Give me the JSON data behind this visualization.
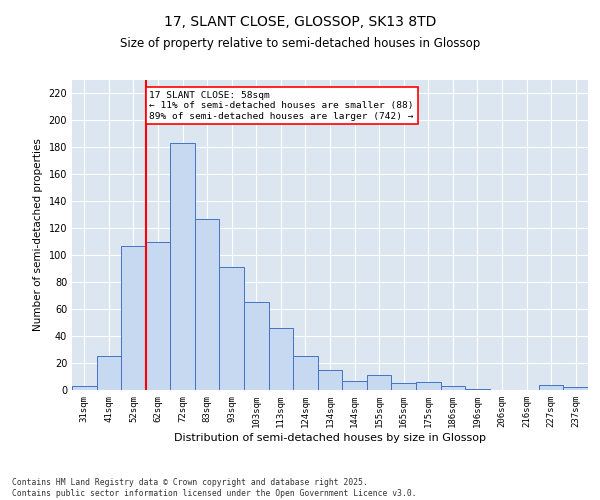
{
  "title1": "17, SLANT CLOSE, GLOSSOP, SK13 8TD",
  "title2": "Size of property relative to semi-detached houses in Glossop",
  "xlabel": "Distribution of semi-detached houses by size in Glossop",
  "ylabel": "Number of semi-detached properties",
  "categories": [
    "31sqm",
    "41sqm",
    "52sqm",
    "62sqm",
    "72sqm",
    "83sqm",
    "93sqm",
    "103sqm",
    "113sqm",
    "124sqm",
    "134sqm",
    "144sqm",
    "155sqm",
    "165sqm",
    "175sqm",
    "186sqm",
    "196sqm",
    "206sqm",
    "216sqm",
    "227sqm",
    "237sqm"
  ],
  "values": [
    3,
    25,
    107,
    110,
    183,
    127,
    91,
    65,
    46,
    25,
    15,
    7,
    11,
    5,
    6,
    3,
    1,
    0,
    0,
    4,
    2
  ],
  "bar_color": "#c6d9f0",
  "bar_edge_color": "#4472c4",
  "vline_color": "red",
  "annotation_text": "17 SLANT CLOSE: 58sqm\n← 11% of semi-detached houses are smaller (88)\n89% of semi-detached houses are larger (742) →",
  "ylim": [
    0,
    230
  ],
  "yticks": [
    0,
    20,
    40,
    60,
    80,
    100,
    120,
    140,
    160,
    180,
    200,
    220
  ],
  "background_color": "#dce6f1",
  "footer": "Contains HM Land Registry data © Crown copyright and database right 2025.\nContains public sector information licensed under the Open Government Licence v3.0.",
  "title_fontsize": 10,
  "subtitle_fontsize": 8.5,
  "tick_fontsize": 6.5,
  "label_fontsize": 8,
  "ylabel_fontsize": 7.5
}
